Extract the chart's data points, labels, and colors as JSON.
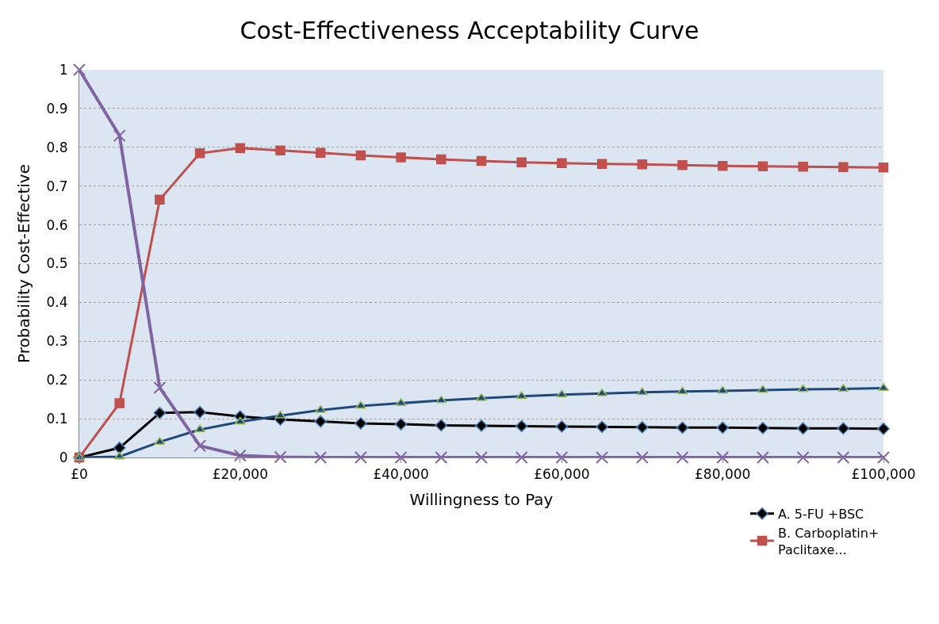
{
  "chart_data": {
    "type": "line",
    "title": "Cost-Effectiveness Acceptability Curve",
    "xlabel": "Willingness to Pay",
    "ylabel": "Probability Cost-Effective",
    "x": [
      0,
      5000,
      10000,
      15000,
      20000,
      25000,
      30000,
      35000,
      40000,
      45000,
      50000,
      55000,
      60000,
      65000,
      70000,
      75000,
      80000,
      85000,
      90000,
      95000,
      100000
    ],
    "series": [
      {
        "name": "A. 5-FU +BSC",
        "color": "#000000",
        "marker": "diamond",
        "values": [
          0,
          0.025,
          0.115,
          0.117,
          0.106,
          0.098,
          0.093,
          0.088,
          0.086,
          0.083,
          0.082,
          0.081,
          0.08,
          0.079,
          0.078,
          0.077,
          0.077,
          0.076,
          0.075,
          0.075,
          0.074
        ]
      },
      {
        "name": "B. Carboplatin+\nPaclitaxe...",
        "color": "#c0504d",
        "marker": "square",
        "values": [
          0,
          0.14,
          0.665,
          0.785,
          0.798,
          0.792,
          0.786,
          0.779,
          0.774,
          0.769,
          0.765,
          0.761,
          0.759,
          0.757,
          0.756,
          0.754,
          0.752,
          0.751,
          0.75,
          0.749,
          0.748
        ]
      },
      {
        "color": "#1f497d",
        "marker": "triangle",
        "values": [
          0,
          0.002,
          0.04,
          0.072,
          0.092,
          0.108,
          0.122,
          0.133,
          0.14,
          0.147,
          0.153,
          0.158,
          0.162,
          0.165,
          0.168,
          0.17,
          0.172,
          0.174,
          0.176,
          0.177,
          0.179
        ]
      },
      {
        "color": "#8064a2",
        "marker": "cross",
        "values": [
          1,
          0.83,
          0.18,
          0.03,
          0.005,
          0.001,
          0,
          0,
          0,
          0,
          0,
          0,
          0,
          0,
          0,
          0,
          0,
          0,
          0,
          0,
          0
        ]
      }
    ],
    "xlim": [
      0,
      100000
    ],
    "xticks": [
      {
        "value": 0,
        "label": "£0"
      },
      {
        "value": 20000,
        "label": "£20,000"
      },
      {
        "value": 40000,
        "label": "£40,000"
      },
      {
        "value": 60000,
        "label": "£60,000"
      },
      {
        "value": 80000,
        "label": "£80,000"
      },
      {
        "value": 100000,
        "label": "£100,000"
      }
    ],
    "ylim": [
      0,
      1
    ],
    "yticks": [
      0,
      0.1,
      0.2,
      0.3,
      0.4,
      0.5,
      0.6,
      0.7,
      0.8,
      0.9,
      1
    ],
    "grid": "y",
    "legend": "bottom right",
    "line_style": "solid"
  }
}
